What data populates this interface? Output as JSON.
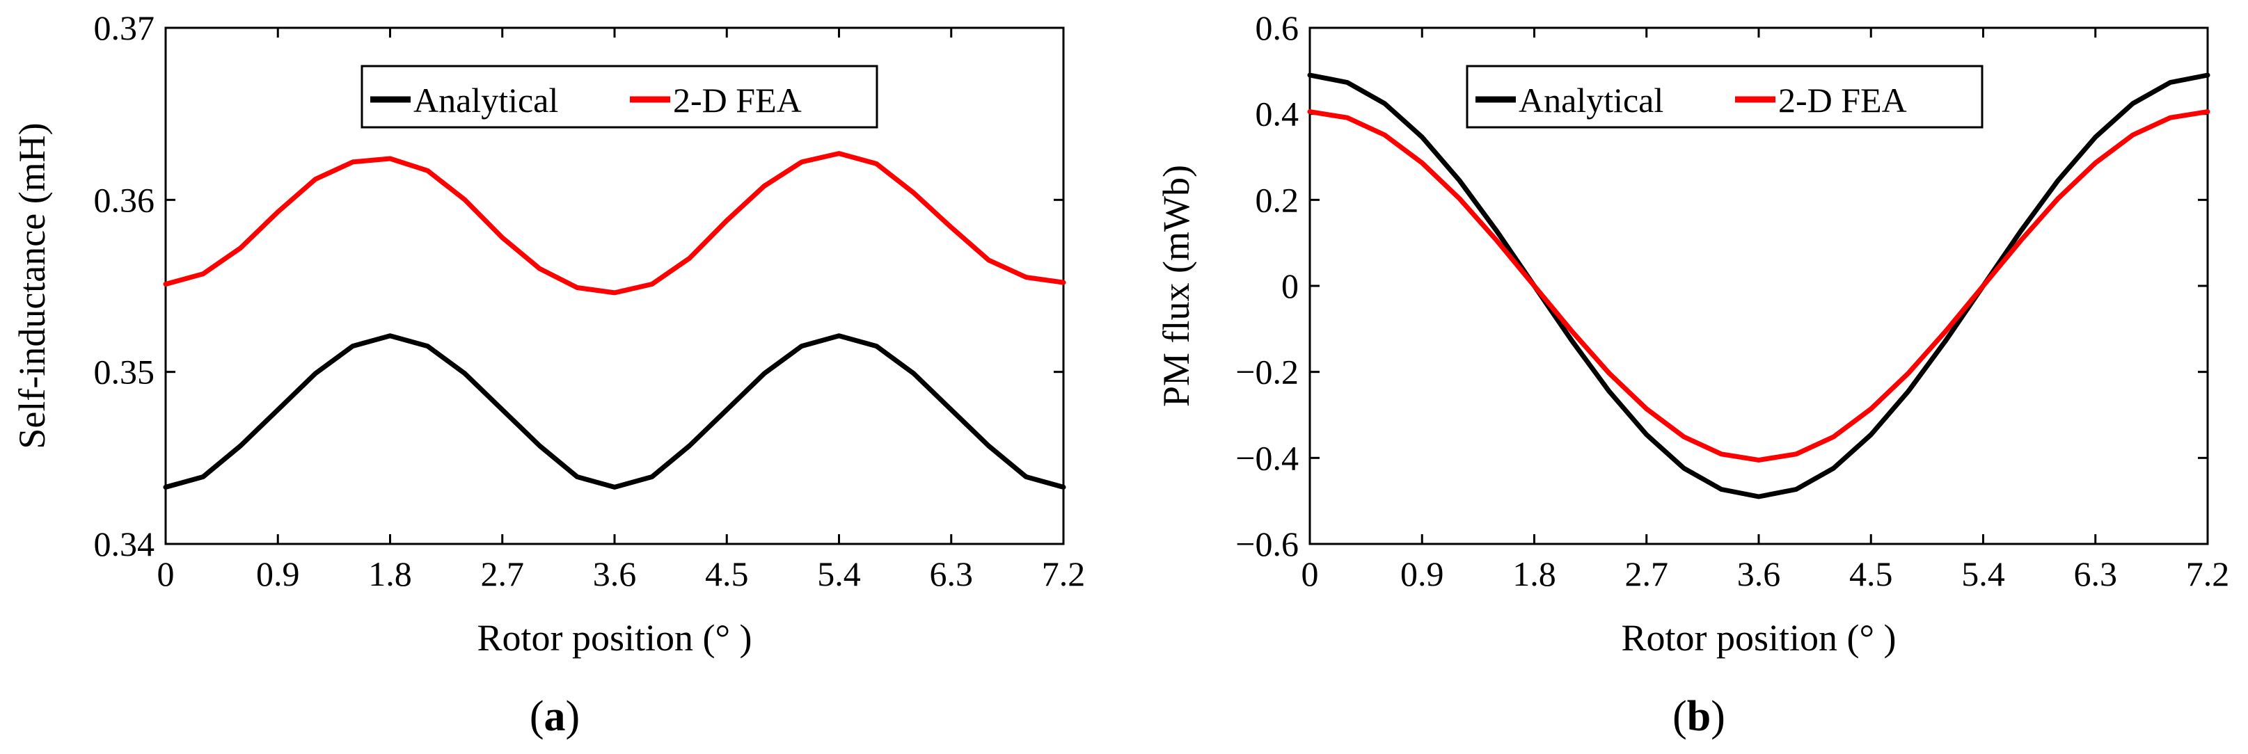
{
  "chart_data": [
    {
      "type": "line",
      "panel_label_open": "(",
      "panel_label_letter": "a",
      "panel_label_close": ")",
      "xlabel": "Rotor position (° )",
      "ylabel": "Self-inductance (mH)",
      "xlim": [
        0,
        7.2
      ],
      "ylim": [
        0.34,
        0.37
      ],
      "xticks": [
        0,
        0.9,
        1.8,
        2.7,
        3.6,
        4.5,
        5.4,
        6.3,
        7.2
      ],
      "xtick_labels": [
        "0",
        "0.9",
        "1.8",
        "2.7",
        "3.6",
        "4.5",
        "5.4",
        "6.3",
        "7.2"
      ],
      "yticks": [
        0.34,
        0.35,
        0.36,
        0.37
      ],
      "ytick_labels": [
        "0.34",
        "0.35",
        "0.36",
        "0.37"
      ],
      "legend_position": "top-center",
      "x": [
        0,
        0.3,
        0.6,
        0.9,
        1.2,
        1.5,
        1.8,
        2.1,
        2.4,
        2.7,
        3.0,
        3.3,
        3.6,
        3.9,
        4.2,
        4.5,
        4.8,
        5.1,
        5.4,
        5.7,
        6.0,
        6.3,
        6.6,
        6.9,
        7.2
      ],
      "series": [
        {
          "name": "Analytical",
          "color": "#000000",
          "values": [
            0.3433,
            0.3439,
            0.3457,
            0.3478,
            0.3499,
            0.3515,
            0.3521,
            0.3515,
            0.3499,
            0.3478,
            0.3457,
            0.3439,
            0.3433,
            0.3439,
            0.3457,
            0.3478,
            0.3499,
            0.3515,
            0.3521,
            0.3515,
            0.3499,
            0.3478,
            0.3457,
            0.3439,
            0.3433
          ]
        },
        {
          "name": "2-D FEA",
          "color": "#ff0000",
          "values": [
            0.3551,
            0.3557,
            0.3572,
            0.3593,
            0.3612,
            0.3622,
            0.3624,
            0.3617,
            0.36,
            0.3578,
            0.356,
            0.3549,
            0.3546,
            0.3551,
            0.3566,
            0.3588,
            0.3608,
            0.3622,
            0.3627,
            0.3621,
            0.3604,
            0.3584,
            0.3565,
            0.3555,
            0.3552
          ]
        }
      ]
    },
    {
      "type": "line",
      "panel_label_open": "(",
      "panel_label_letter": "b",
      "panel_label_close": ")",
      "xlabel": "Rotor position (° )",
      "ylabel": "PM flux (mWb)",
      "xlim": [
        0,
        7.2
      ],
      "ylim": [
        -0.6,
        0.6
      ],
      "xticks": [
        0,
        0.9,
        1.8,
        2.7,
        3.6,
        4.5,
        5.4,
        6.3,
        7.2
      ],
      "xtick_labels": [
        "0",
        "0.9",
        "1.8",
        "2.7",
        "3.6",
        "4.5",
        "5.4",
        "6.3",
        "7.2"
      ],
      "yticks": [
        -0.6,
        -0.4,
        -0.2,
        0,
        0.2,
        0.4,
        0.6
      ],
      "ytick_labels": [
        "−0.6",
        "−0.4",
        "−0.2",
        "0",
        "0.2",
        "0.4",
        "0.6"
      ],
      "legend_position": "top-center",
      "x": [
        0,
        0.3,
        0.6,
        0.9,
        1.2,
        1.5,
        1.8,
        2.1,
        2.4,
        2.7,
        3.0,
        3.3,
        3.6,
        3.9,
        4.2,
        4.5,
        4.8,
        5.1,
        5.4,
        5.7,
        6.0,
        6.3,
        6.6,
        6.9,
        7.2
      ],
      "series": [
        {
          "name": "Analytical",
          "color": "#000000",
          "values": [
            0.49,
            0.473,
            0.424,
            0.346,
            0.245,
            0.127,
            0.0,
            -0.127,
            -0.245,
            -0.346,
            -0.424,
            -0.473,
            -0.49,
            -0.473,
            -0.424,
            -0.346,
            -0.245,
            -0.127,
            0.0,
            0.127,
            0.245,
            0.346,
            0.424,
            0.473,
            0.49
          ]
        },
        {
          "name": "2-D FEA",
          "color": "#ff0000",
          "values": [
            0.405,
            0.391,
            0.351,
            0.286,
            0.203,
            0.105,
            0.0,
            -0.105,
            -0.203,
            -0.286,
            -0.351,
            -0.391,
            -0.405,
            -0.391,
            -0.351,
            -0.286,
            -0.203,
            -0.105,
            0.0,
            0.105,
            0.203,
            0.286,
            0.351,
            0.391,
            0.405
          ]
        }
      ]
    }
  ]
}
